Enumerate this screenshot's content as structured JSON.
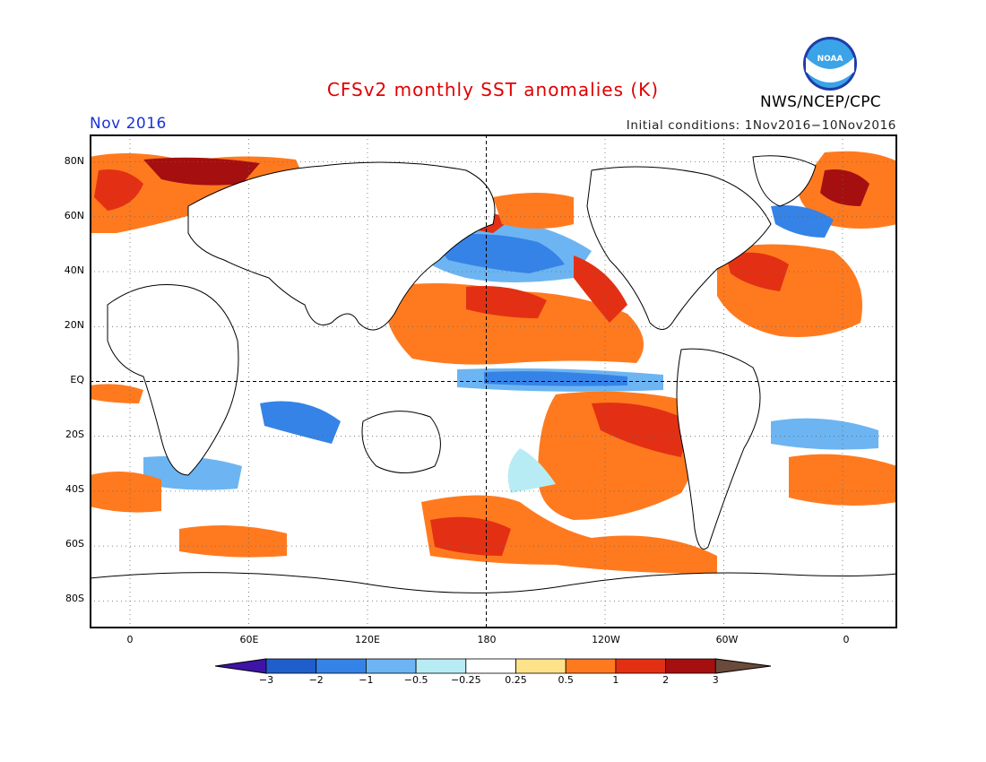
{
  "header": {
    "title": "CFSv2 monthly SST anomalies (K)",
    "month": "Nov 2016",
    "initial_conditions": "Initial conditions: 1Nov2016−10Nov2016",
    "agency": "NWS/NCEP/CPC",
    "logo_text": "NOAA"
  },
  "colors": {
    "title": "#e00000",
    "month": "#1a33d6",
    "land": "#ffffff",
    "coast": "#000000"
  },
  "map": {
    "lat_labels": [
      "80N",
      "60N",
      "40N",
      "20N",
      "EQ",
      "20S",
      "40S",
      "60S",
      "80S"
    ],
    "lon_labels": [
      "0",
      "60E",
      "120E",
      "180",
      "120W",
      "60W",
      "0"
    ]
  },
  "colorbar": {
    "labels": [
      "−3",
      "−2",
      "−1",
      "−0.5",
      "−0.25",
      "0.25",
      "0.5",
      "1",
      "2",
      "3"
    ],
    "colors": [
      "#3d14a6",
      "#1f5fcc",
      "#3583e6",
      "#6cb5f2",
      "#b8ecf5",
      "#ffffff",
      "#fde28a",
      "#ff7a1f",
      "#e33014",
      "#a50f0f",
      "#6a4a3a"
    ]
  }
}
